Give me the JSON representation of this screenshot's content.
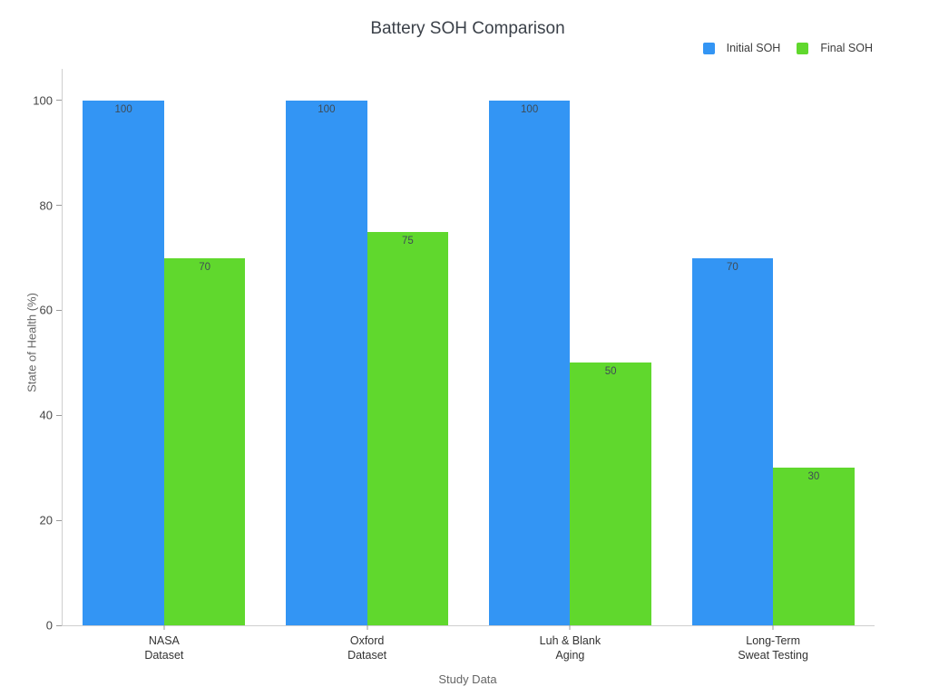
{
  "title": "Battery SOH Comparison",
  "chart_data": {
    "type": "bar",
    "title": "Battery SOH Comparison",
    "xlabel": "Study Data",
    "ylabel": "State of Health (%)",
    "categories": [
      "NASA\nDataset",
      "Oxford\nDataset",
      "Luh & Blank\nAging",
      "Long-Term\nSweat Testing"
    ],
    "series": [
      {
        "name": "Initial SOH",
        "color": "#3395f4",
        "values": [
          100,
          100,
          100,
          70
        ]
      },
      {
        "name": "Final SOH",
        "color": "#60d82d",
        "values": [
          70,
          75,
          50,
          30
        ]
      }
    ],
    "yticks": [
      0,
      20,
      40,
      60,
      80,
      100
    ],
    "ylim": [
      0,
      106
    ],
    "grid": false,
    "bar_labels": true,
    "legend_position": "top-right"
  },
  "colors": {
    "background": "#ffffff",
    "axis_line": "#cfcfcf",
    "tick_mark": "#9a9a9a",
    "tick_label": "#444444",
    "category_label": "#333333",
    "axis_title": "#666666",
    "title_text": "#3b4149",
    "bar_value_label": "#3f4b55"
  }
}
